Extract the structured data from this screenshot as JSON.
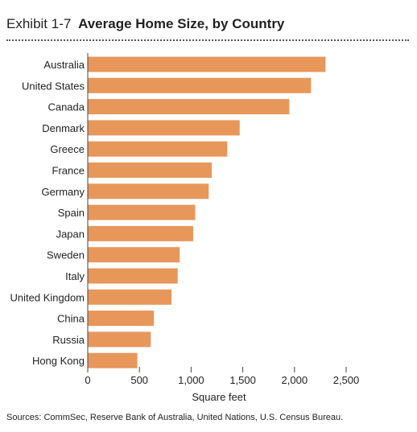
{
  "header": {
    "exhibit": "Exhibit 1-7",
    "title": "Average Home Size, by Country"
  },
  "chart_data": {
    "type": "bar",
    "orientation": "horizontal",
    "title": "Average Home Size, by Country",
    "xlabel": "Square feet",
    "ylabel": "",
    "xlim": [
      0,
      2500
    ],
    "xticks": [
      0,
      500,
      1000,
      1500,
      2000,
      2500
    ],
    "xtick_labels": [
      "0",
      "500",
      "1,000",
      "1,500",
      "2,000",
      "2,500"
    ],
    "grid": false,
    "bar_color": "#E8975A",
    "categories": [
      "Australia",
      "United States",
      "Canada",
      "Denmark",
      "Greece",
      "France",
      "Germany",
      "Spain",
      "Japan",
      "Sweden",
      "Italy",
      "United Kingdom",
      "China",
      "Russia",
      "Hong Kong"
    ],
    "values": [
      2300,
      2160,
      1950,
      1470,
      1350,
      1200,
      1170,
      1040,
      1020,
      890,
      870,
      810,
      640,
      610,
      480
    ]
  },
  "footer": {
    "source": "Sources: CommSec, Reserve Bank of Australia, United Nations, U.S. Census Bureau."
  }
}
